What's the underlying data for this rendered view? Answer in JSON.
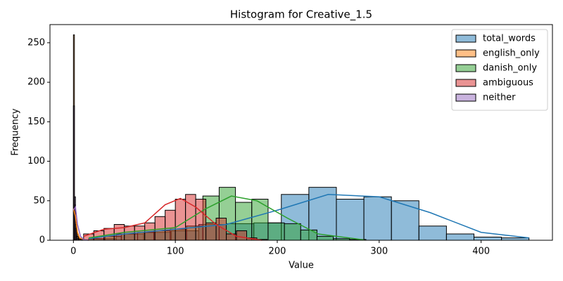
{
  "chart_data": {
    "type": "histogram",
    "title": "Histogram for Creative_1.5",
    "x_label": "Value",
    "y_label": "Frequency",
    "xlim": [
      -23,
      470
    ],
    "ylim": [
      0,
      273
    ],
    "xticks": [
      0,
      100,
      200,
      300,
      400
    ],
    "yticks": [
      0,
      50,
      100,
      150,
      200,
      250
    ],
    "legend": "upper right",
    "series": [
      {
        "name": "total_words",
        "color": "#1f77b4",
        "bins": [
          15,
          42,
          69,
          96,
          123,
          150,
          177,
          204,
          231,
          258,
          285,
          312,
          339,
          366,
          393,
          420,
          447
        ],
        "counts": [
          2,
          8,
          10,
          12,
          20,
          21,
          22,
          58,
          67,
          52,
          55,
          50,
          18,
          8,
          4,
          3
        ],
        "kde_x": [
          15,
          50,
          100,
          150,
          200,
          250,
          300,
          350,
          400,
          447
        ],
        "kde_y": [
          2,
          8,
          14,
          20,
          38,
          58,
          55,
          35,
          10,
          3
        ]
      },
      {
        "name": "english_only",
        "color": "#ff7f0e",
        "bins": [
          0,
          1,
          2,
          3,
          4,
          5,
          6,
          7,
          8,
          9,
          10
        ],
        "counts": [
          260,
          45,
          20,
          10,
          5,
          3,
          2,
          1,
          1,
          1
        ],
        "kde_x": [
          0,
          2,
          4,
          6,
          10,
          15
        ],
        "kde_y": [
          40,
          30,
          10,
          3,
          1,
          0
        ]
      },
      {
        "name": "danish_only",
        "color": "#2ca02c",
        "bins": [
          15,
          31,
          47,
          63,
          79,
          95,
          111,
          127,
          143,
          159,
          175,
          191,
          207,
          223,
          239,
          255,
          271,
          287
        ],
        "counts": [
          2,
          5,
          8,
          10,
          12,
          14,
          18,
          56,
          67,
          48,
          52,
          22,
          21,
          13,
          5,
          2,
          1
        ],
        "kde_x": [
          15,
          50,
          100,
          130,
          155,
          180,
          210,
          240,
          285
        ],
        "kde_y": [
          3,
          10,
          16,
          40,
          56,
          50,
          28,
          8,
          0.5
        ]
      },
      {
        "name": "ambiguous",
        "color": "#d62728",
        "bins": [
          10,
          20,
          30,
          40,
          50,
          60,
          70,
          80,
          90,
          100,
          110,
          120,
          130,
          140,
          150,
          160,
          170,
          180,
          190
        ],
        "counts": [
          8,
          12,
          15,
          20,
          18,
          18,
          22,
          30,
          38,
          52,
          58,
          52,
          22,
          28,
          8,
          12,
          3,
          1
        ],
        "kde_x": [
          10,
          30,
          50,
          70,
          90,
          105,
          120,
          140,
          160,
          185
        ],
        "kde_y": [
          5,
          14,
          16,
          22,
          45,
          53,
          42,
          20,
          5,
          0
        ]
      },
      {
        "name": "neither",
        "color": "#9467bd",
        "bins": [
          0,
          1,
          2,
          3,
          4,
          5,
          6
        ],
        "counts": [
          170,
          55,
          15,
          5,
          2,
          1
        ],
        "kde_x": [
          0,
          2,
          4,
          7,
          10,
          15
        ],
        "kde_y": [
          38,
          42,
          20,
          5,
          1,
          0
        ]
      }
    ]
  }
}
